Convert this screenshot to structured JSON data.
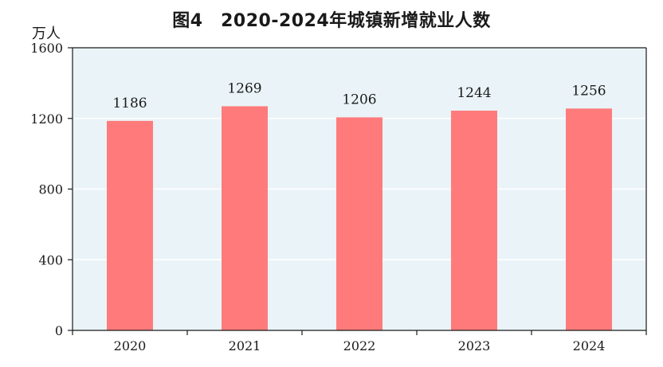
{
  "chart_data": {
    "type": "bar",
    "title": "图4　2020-2024年城镇新增就业人数",
    "ylabel": "万人",
    "xlabel": "",
    "categories": [
      "2020",
      "2021",
      "2022",
      "2023",
      "2024"
    ],
    "values": [
      1186,
      1269,
      1206,
      1244,
      1256
    ],
    "data_labels": [
      "1186",
      "1269",
      "1206",
      "1244",
      "1256"
    ],
    "ylim": [
      0,
      1600
    ],
    "yticks": [
      0,
      400,
      800,
      1200,
      1600
    ],
    "ytick_labels": [
      "0",
      "400",
      "800",
      "1200",
      "1600"
    ],
    "grid": true,
    "legend": "none",
    "colors": {
      "bar": "#ff7b7b",
      "plot_background": "#eaf4f8",
      "gridline": "#ffffff",
      "axis": "#1a1a1a"
    }
  }
}
